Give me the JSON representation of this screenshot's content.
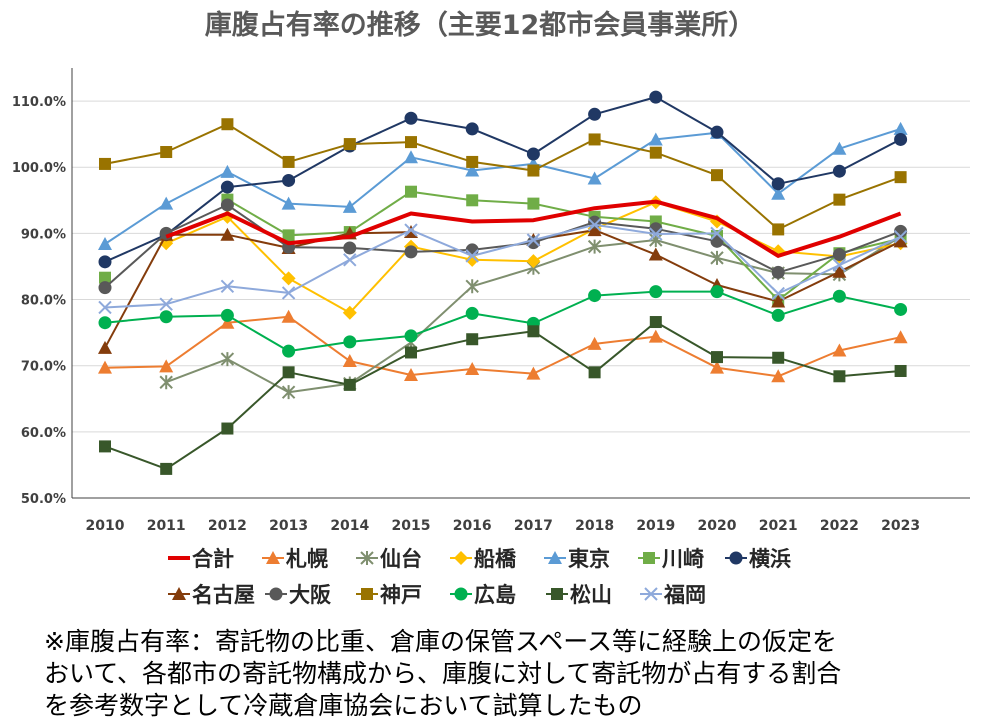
{
  "chart_data": {
    "type": "line",
    "title": "庫腹占有率の推移（主要12都市会員事業所）",
    "xlabel": "",
    "ylabel": "",
    "x": [
      "2010",
      "2011",
      "2012",
      "2013",
      "2014",
      "2015",
      "2016",
      "2017",
      "2018",
      "2019",
      "2020",
      "2021",
      "2022",
      "2023"
    ],
    "ylim": [
      50,
      115
    ],
    "y_ticks": [
      "50.0%",
      "60.0%",
      "70.0%",
      "80.0%",
      "90.0%",
      "100.0%",
      "110.0%"
    ],
    "grid": true,
    "legend_position": "bottom",
    "series": [
      {
        "name": "合計",
        "color": "#e00000",
        "marker": "none",
        "values": [
          null,
          89.5,
          93.0,
          88.5,
          89.5,
          93.0,
          91.8,
          92.0,
          93.8,
          94.8,
          92.3,
          86.6,
          89.5,
          93.0
        ]
      },
      {
        "name": "札幌",
        "color": "#ed7d31",
        "marker": "triangle",
        "values": [
          69.7,
          69.9,
          76.5,
          77.4,
          70.7,
          68.6,
          69.5,
          68.8,
          73.3,
          74.4,
          69.7,
          68.4,
          72.3,
          74.3
        ]
      },
      {
        "name": "仙台",
        "color": "#7f8f6f",
        "marker": "asterisk",
        "values": [
          null,
          67.5,
          71.0,
          66.0,
          67.3,
          73.5,
          82.0,
          84.8,
          88.0,
          89.0,
          86.3,
          84.0,
          83.8,
          89.5
        ]
      },
      {
        "name": "船橋",
        "color": "#ffc000",
        "marker": "diamond",
        "values": [
          null,
          88.5,
          92.5,
          83.2,
          78.0,
          88.0,
          86.0,
          85.8,
          90.7,
          94.7,
          91.8,
          87.3,
          86.5,
          88.5
        ]
      },
      {
        "name": "東京",
        "color": "#5b9bd5",
        "marker": "triangle",
        "values": [
          88.4,
          94.5,
          99.3,
          94.5,
          94.0,
          101.5,
          99.5,
          100.5,
          98.3,
          104.2,
          105.2,
          96.0,
          102.8,
          105.8
        ]
      },
      {
        "name": "川崎",
        "color": "#70ad47",
        "marker": "square",
        "values": [
          83.3,
          null,
          95.1,
          89.7,
          90.2,
          96.3,
          95.0,
          94.5,
          92.5,
          91.8,
          89.6,
          79.9,
          87.0,
          89.2
        ]
      },
      {
        "name": "横浜",
        "color": "#203864",
        "marker": "circle",
        "values": [
          85.7,
          89.8,
          97.0,
          98.0,
          103.2,
          107.4,
          105.8,
          102.0,
          108.0,
          110.6,
          105.3,
          97.5,
          99.4,
          104.2
        ]
      },
      {
        "name": "名古屋",
        "color": "#843c0c",
        "marker": "triangle",
        "values": [
          72.7,
          89.8,
          89.8,
          87.8,
          90.0,
          90.2,
          null,
          89.0,
          90.5,
          86.8,
          82.2,
          79.7,
          84.2,
          88.8
        ]
      },
      {
        "name": "大阪",
        "color": "#595959",
        "marker": "circle",
        "values": [
          81.8,
          90.0,
          94.3,
          87.9,
          87.8,
          87.2,
          87.5,
          88.6,
          91.7,
          90.7,
          88.8,
          84.1,
          86.8,
          90.3
        ]
      },
      {
        "name": "神戸",
        "color": "#997300",
        "marker": "square",
        "values": [
          100.5,
          102.3,
          106.5,
          100.8,
          103.5,
          103.8,
          100.8,
          99.5,
          104.2,
          102.2,
          98.8,
          90.6,
          95.1,
          98.5
        ]
      },
      {
        "name": "広島",
        "color": "#00b050",
        "marker": "circle",
        "values": [
          76.5,
          77.4,
          77.6,
          72.2,
          73.6,
          74.5,
          77.9,
          76.4,
          80.6,
          81.2,
          81.2,
          77.6,
          80.5,
          78.5
        ]
      },
      {
        "name": "松山",
        "color": "#38572a",
        "marker": "square",
        "values": [
          57.8,
          54.4,
          60.5,
          69.0,
          67.1,
          72.0,
          74.0,
          75.2,
          69.0,
          76.6,
          71.3,
          71.2,
          68.4,
          69.2
        ]
      },
      {
        "name": "福岡",
        "color": "#8ea9db",
        "marker": "cross",
        "values": [
          78.8,
          79.3,
          82.0,
          81.0,
          86.0,
          90.5,
          86.6,
          89.0,
          91.3,
          89.9,
          90.0,
          80.9,
          85.2,
          89.5
        ]
      }
    ]
  },
  "note": {
    "lines": [
      "※庫腹占有率：寄託物の比重、倉庫の保管スペース等に経験上の仮定を",
      "おいて、各都市の寄託物構成から、庫腹に対して寄託物が占有する割合",
      "を参考数字として冷蔵倉庫協会において試算したもの"
    ]
  }
}
